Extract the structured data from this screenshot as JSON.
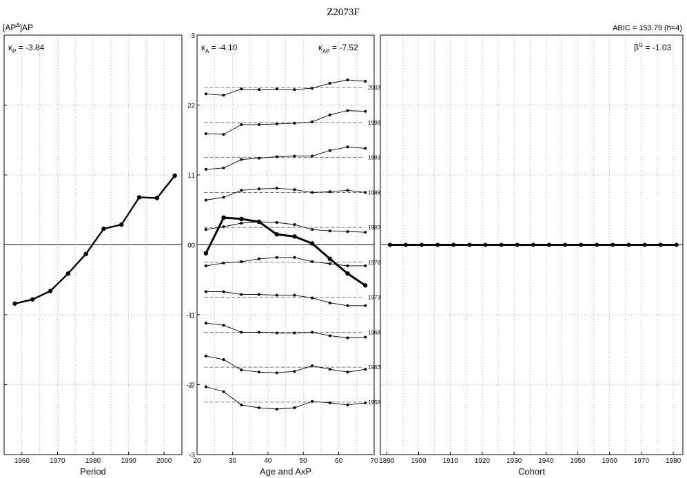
{
  "header": {
    "title": "Z2073F",
    "left_label": "[AP",
    "left_label_sup": "Δ",
    "left_label_tail": "]AP",
    "abic": "ABIC = 153.79 (h=4)"
  },
  "chart_data": [
    {
      "type": "line",
      "panel": "period",
      "xlabel": "Period",
      "ylabel": "",
      "xlim": [
        1955,
        2005
      ],
      "ylim": [
        -3,
        3
      ],
      "xticks": [
        1960,
        1970,
        1980,
        1990,
        2000
      ],
      "yticks": [
        -2,
        -1,
        0,
        1,
        2
      ],
      "annotation": {
        "symbol": "κ",
        "sub": "P",
        "text": " = -3.84"
      },
      "series": [
        {
          "x": [
            1958,
            1963,
            1968,
            1973,
            1978,
            1983,
            1988,
            1993,
            1998,
            2003
          ],
          "values": [
            -0.84,
            -0.78,
            -0.66,
            -0.41,
            -0.13,
            0.23,
            0.29,
            0.68,
            0.67,
            0.99
          ]
        }
      ]
    },
    {
      "type": "line",
      "panel": "age",
      "xlabel": "Age and AxP",
      "ylabel": "",
      "xlim": [
        20,
        70
      ],
      "ylim": [
        -3,
        3
      ],
      "xticks": [
        20,
        30,
        40,
        50,
        60,
        70
      ],
      "yticks": [
        -3,
        -2,
        -1,
        0,
        1,
        2,
        3
      ],
      "annotations": [
        {
          "symbol": "κ",
          "sub": "A",
          "text": " = -4.10"
        },
        {
          "symbol": "κ",
          "sub": "AP",
          "text": " = -7.52"
        }
      ],
      "age_x": [
        22.5,
        27.5,
        32.5,
        37.5,
        42.5,
        47.5,
        52.5,
        57.5,
        62.5,
        67.5
      ],
      "age_effect": [
        -0.12,
        0.39,
        0.37,
        0.33,
        0.15,
        0.12,
        0.02,
        -0.2,
        -0.41,
        -0.58
      ],
      "period_series": [
        {
          "label": "2003",
          "offset": 2.25,
          "values": [
            2.16,
            2.14,
            2.23,
            2.22,
            2.23,
            2.22,
            2.24,
            2.31,
            2.36,
            2.34
          ]
        },
        {
          "label": "1998",
          "offset": 1.75,
          "values": [
            1.59,
            1.58,
            1.72,
            1.72,
            1.73,
            1.74,
            1.76,
            1.86,
            1.92,
            1.91
          ]
        },
        {
          "label": "1993",
          "offset": 1.25,
          "values": [
            1.08,
            1.1,
            1.22,
            1.24,
            1.26,
            1.27,
            1.27,
            1.35,
            1.4,
            1.38
          ]
        },
        {
          "label": "1988",
          "offset": 0.75,
          "values": [
            0.64,
            0.68,
            0.78,
            0.8,
            0.81,
            0.79,
            0.75,
            0.76,
            0.78,
            0.75
          ]
        },
        {
          "label": "1983",
          "offset": 0.25,
          "values": [
            0.22,
            0.26,
            0.31,
            0.33,
            0.32,
            0.29,
            0.22,
            0.2,
            0.19,
            0.18
          ]
        },
        {
          "label": "1978",
          "offset": -0.25,
          "values": [
            -0.3,
            -0.26,
            -0.24,
            -0.2,
            -0.18,
            -0.18,
            -0.24,
            -0.27,
            -0.3,
            -0.3
          ]
        },
        {
          "label": "1973",
          "offset": -0.75,
          "values": [
            -0.67,
            -0.67,
            -0.71,
            -0.71,
            -0.72,
            -0.72,
            -0.76,
            -0.83,
            -0.87,
            -0.87
          ]
        },
        {
          "label": "1968",
          "offset": -1.25,
          "values": [
            -1.12,
            -1.15,
            -1.25,
            -1.25,
            -1.26,
            -1.26,
            -1.25,
            -1.3,
            -1.33,
            -1.32
          ]
        },
        {
          "label": "1963",
          "offset": -1.75,
          "values": [
            -1.59,
            -1.64,
            -1.79,
            -1.82,
            -1.83,
            -1.81,
            -1.73,
            -1.78,
            -1.82,
            -1.78
          ]
        },
        {
          "label": "1958",
          "offset": -2.25,
          "values": [
            -2.03,
            -2.1,
            -2.29,
            -2.33,
            -2.35,
            -2.33,
            -2.24,
            -2.26,
            -2.29,
            -2.26
          ]
        }
      ]
    },
    {
      "type": "line",
      "panel": "cohort",
      "xlabel": "Cohort",
      "ylabel": "",
      "xlim": [
        1888,
        1983
      ],
      "ylim": [
        -3,
        3
      ],
      "xticks": [
        1890,
        1900,
        1910,
        1920,
        1930,
        1940,
        1950,
        1960,
        1970,
        1980
      ],
      "annotation": {
        "symbol": "β",
        "sup": "G",
        "text": " = -1.03"
      },
      "series": [
        {
          "x": [
            1891,
            1896,
            1901,
            1906,
            1911,
            1916,
            1921,
            1926,
            1931,
            1936,
            1941,
            1946,
            1951,
            1956,
            1961,
            1966,
            1971,
            1976,
            1981
          ],
          "values": [
            0,
            0,
            0,
            0,
            0,
            0,
            0,
            0,
            0,
            0,
            0,
            0,
            0,
            0,
            0,
            0,
            0,
            0,
            0
          ]
        }
      ]
    }
  ]
}
